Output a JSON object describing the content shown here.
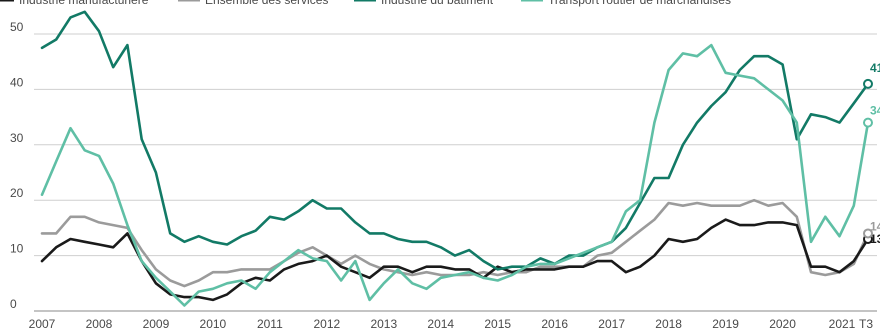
{
  "chart_data": {
    "type": "line",
    "x_ticks": [
      "2007",
      "2008",
      "2009",
      "2010",
      "2011",
      "2012",
      "2013",
      "2014",
      "2015",
      "2016",
      "2017",
      "2018",
      "2019",
      "2020",
      "2021",
      "T3"
    ],
    "y_ticks": [
      "0",
      "10",
      "20",
      "30",
      "40",
      "50"
    ],
    "ylim": [
      0,
      55
    ],
    "grid": true,
    "legend_position": "top",
    "series": [
      {
        "name": "Industrie manufacturière",
        "color": "#1a1a1a",
        "end_label": "13",
        "x": [
          2007.0,
          2007.25,
          2007.5,
          2007.75,
          2008.0,
          2008.25,
          2008.5,
          2008.75,
          2009.0,
          2009.25,
          2009.5,
          2009.75,
          2010.0,
          2010.25,
          2010.5,
          2010.75,
          2011.0,
          2011.25,
          2011.5,
          2011.75,
          2012.0,
          2012.25,
          2012.5,
          2012.75,
          2013.0,
          2013.25,
          2013.5,
          2013.75,
          2014.0,
          2014.25,
          2014.5,
          2014.75,
          2015.0,
          2015.25,
          2015.5,
          2015.75,
          2016.0,
          2016.25,
          2016.5,
          2016.75,
          2017.0,
          2017.25,
          2017.5,
          2017.75,
          2018.0,
          2018.25,
          2018.5,
          2018.75,
          2019.0,
          2019.25,
          2019.5,
          2019.75,
          2020.0,
          2020.25,
          2020.5,
          2020.75,
          2021.0,
          2021.25,
          2021.5
        ],
        "values": [
          9,
          11.5,
          13,
          12.5,
          12,
          11.5,
          14,
          9,
          5,
          3,
          2.5,
          2.5,
          2,
          3,
          5,
          6,
          5.5,
          7.5,
          8.5,
          9,
          10,
          8,
          7,
          6,
          8,
          8,
          7,
          8,
          8,
          7.5,
          7.5,
          6,
          8,
          7,
          7.5,
          7.5,
          7.5,
          8,
          8,
          9,
          9,
          7,
          8,
          10,
          13,
          12.5,
          13,
          15,
          16.5,
          15.5,
          15.5,
          16,
          16,
          15.5,
          8,
          8,
          7,
          9,
          13
        ]
      },
      {
        "name": "Ensemble des services",
        "color": "#9b9b9b",
        "end_label": "14",
        "x": [
          2007.0,
          2007.25,
          2007.5,
          2007.75,
          2008.0,
          2008.25,
          2008.5,
          2008.75,
          2009.0,
          2009.25,
          2009.5,
          2009.75,
          2010.0,
          2010.25,
          2010.5,
          2010.75,
          2011.0,
          2011.25,
          2011.5,
          2011.75,
          2012.0,
          2012.25,
          2012.5,
          2012.75,
          2013.0,
          2013.25,
          2013.5,
          2013.75,
          2014.0,
          2014.25,
          2014.5,
          2014.75,
          2015.0,
          2015.25,
          2015.5,
          2015.75,
          2016.0,
          2016.25,
          2016.5,
          2016.75,
          2017.0,
          2017.25,
          2017.5,
          2017.75,
          2018.0,
          2018.25,
          2018.5,
          2018.75,
          2019.0,
          2019.25,
          2019.5,
          2019.75,
          2020.0,
          2020.25,
          2020.5,
          2020.75,
          2021.0,
          2021.25,
          2021.5
        ],
        "values": [
          14,
          14,
          17,
          17,
          16,
          15.5,
          15,
          11,
          7.5,
          5.5,
          4.5,
          5.5,
          7,
          7,
          7.5,
          7.5,
          7.5,
          9,
          10.5,
          11.5,
          10,
          8.5,
          10,
          8.5,
          7.5,
          7,
          6.5,
          7,
          6.5,
          6.5,
          6.5,
          7,
          6.5,
          7,
          7,
          8,
          8,
          8,
          8,
          10,
          10.5,
          12.5,
          14.5,
          16.5,
          19.5,
          19,
          19.5,
          19,
          19,
          19,
          20,
          19,
          19.5,
          17,
          7,
          6.5,
          7,
          8.5,
          14
        ]
      },
      {
        "name": "Industrie du bâtiment",
        "color": "#127a66",
        "end_label": "41",
        "x": [
          2007.0,
          2007.25,
          2007.5,
          2007.75,
          2008.0,
          2008.25,
          2008.5,
          2008.75,
          2009.0,
          2009.25,
          2009.5,
          2009.75,
          2010.0,
          2010.25,
          2010.5,
          2010.75,
          2011.0,
          2011.25,
          2011.5,
          2011.75,
          2012.0,
          2012.25,
          2012.5,
          2012.75,
          2013.0,
          2013.25,
          2013.5,
          2013.75,
          2014.0,
          2014.25,
          2014.5,
          2014.75,
          2015.0,
          2015.25,
          2015.5,
          2015.75,
          2016.0,
          2016.25,
          2016.5,
          2016.75,
          2017.0,
          2017.25,
          2017.5,
          2017.75,
          2018.0,
          2018.25,
          2018.5,
          2018.75,
          2019.0,
          2019.25,
          2019.5,
          2019.75,
          2020.0,
          2020.25,
          2020.5,
          2020.75,
          2021.0,
          2021.25,
          2021.5
        ],
        "values": [
          47.5,
          49,
          53,
          54,
          50.5,
          44,
          48,
          31,
          25,
          14,
          12.5,
          13.5,
          12.5,
          12,
          13.5,
          14.5,
          17,
          16.5,
          18,
          20,
          18.5,
          18.5,
          16,
          14,
          14,
          13,
          12.5,
          12.5,
          11.5,
          10,
          11,
          9,
          7.5,
          8,
          8,
          9.5,
          8.5,
          10,
          10,
          11.5,
          12.5,
          15,
          19.5,
          24,
          24,
          30,
          34,
          37,
          39.5,
          43.5,
          46,
          46,
          44.5,
          31,
          35.5,
          35,
          34,
          37.5,
          41
        ]
      },
      {
        "name": "Transport routier de marchandises",
        "color": "#5fbfa5",
        "end_label": "34",
        "x": [
          2007.0,
          2007.25,
          2007.5,
          2007.75,
          2008.0,
          2008.25,
          2008.5,
          2008.75,
          2009.0,
          2009.25,
          2009.5,
          2009.75,
          2010.0,
          2010.25,
          2010.5,
          2010.75,
          2011.0,
          2011.25,
          2011.5,
          2011.75,
          2012.0,
          2012.25,
          2012.5,
          2012.75,
          2013.0,
          2013.25,
          2013.5,
          2013.75,
          2014.0,
          2014.25,
          2014.5,
          2014.75,
          2015.0,
          2015.25,
          2015.5,
          2015.75,
          2016.0,
          2016.25,
          2016.5,
          2016.75,
          2017.0,
          2017.25,
          2017.5,
          2017.75,
          2018.0,
          2018.25,
          2018.5,
          2018.75,
          2019.0,
          2019.25,
          2019.5,
          2019.75,
          2020.0,
          2020.25,
          2020.5,
          2020.75,
          2021.0,
          2021.25,
          2021.5
        ],
        "values": [
          21,
          27,
          33,
          29,
          28,
          23,
          15.5,
          9,
          6,
          3.5,
          1,
          3.5,
          4,
          5,
          5.5,
          4,
          7,
          9,
          11,
          9.5,
          9,
          5.5,
          9,
          2,
          5,
          7.5,
          5,
          4,
          6,
          6.5,
          7,
          6,
          5.5,
          6.5,
          8,
          8.5,
          8.5,
          9.5,
          10.5,
          11.5,
          12.5,
          18,
          20,
          34,
          43.5,
          46.5,
          46,
          48,
          43,
          42.5,
          42,
          40,
          38,
          34,
          12.5,
          17,
          13.5,
          19,
          34
        ]
      }
    ]
  }
}
